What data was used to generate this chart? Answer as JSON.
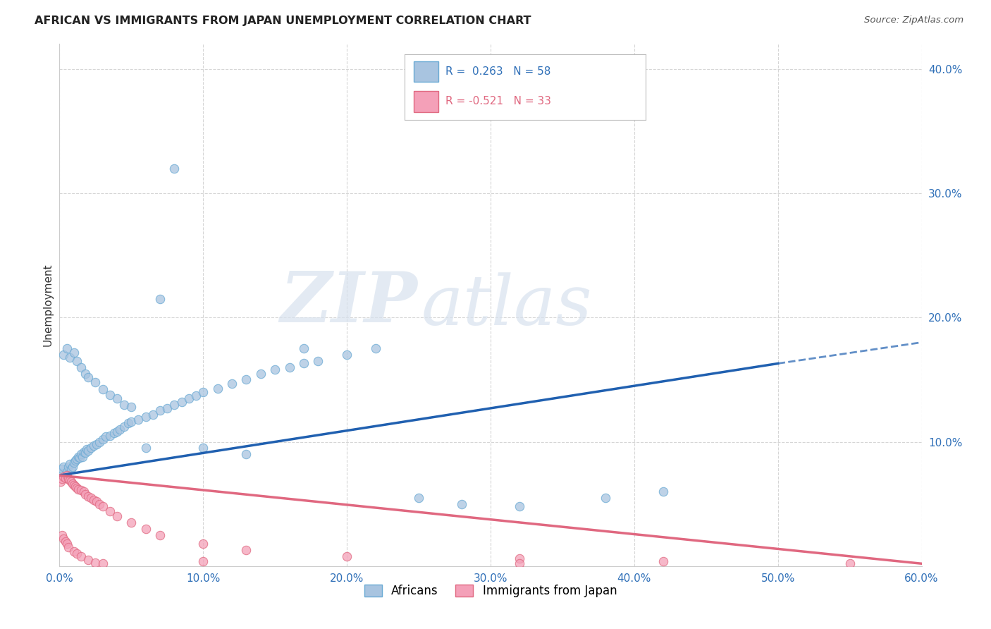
{
  "title": "AFRICAN VS IMMIGRANTS FROM JAPAN UNEMPLOYMENT CORRELATION CHART",
  "source": "Source: ZipAtlas.com",
  "ylabel": "Unemployment",
  "x_min": 0.0,
  "x_max": 0.6,
  "y_min": 0.0,
  "y_max": 0.42,
  "x_ticks": [
    0.0,
    0.1,
    0.2,
    0.3,
    0.4,
    0.5,
    0.6
  ],
  "x_tick_labels": [
    "0.0%",
    "10.0%",
    "20.0%",
    "30.0%",
    "40.0%",
    "50.0%",
    "60.0%"
  ],
  "y_ticks": [
    0.0,
    0.1,
    0.2,
    0.3,
    0.4
  ],
  "y_tick_labels": [
    "",
    "10.0%",
    "20.0%",
    "30.0%",
    "40.0%"
  ],
  "african_color": "#a8c4e0",
  "african_edge_color": "#6aaad4",
  "japan_color": "#f4a0b8",
  "japan_edge_color": "#e06880",
  "trend_african_color": "#2060b0",
  "trend_japan_color": "#e06880",
  "watermark_zip": "ZIP",
  "watermark_atlas": "atlas",
  "africans_label": "Africans",
  "japan_label": "Immigrants from Japan",
  "legend_R1": "R =  0.263",
  "legend_N1": "N = 58",
  "legend_R2": "R = -0.521",
  "legend_N2": "N = 33",
  "african_x": [
    0.001,
    0.002,
    0.003,
    0.004,
    0.005,
    0.006,
    0.007,
    0.008,
    0.009,
    0.01,
    0.011,
    0.012,
    0.013,
    0.014,
    0.015,
    0.016,
    0.017,
    0.018,
    0.019,
    0.02,
    0.022,
    0.024,
    0.026,
    0.028,
    0.03,
    0.032,
    0.035,
    0.038,
    0.04,
    0.042,
    0.045,
    0.048,
    0.05,
    0.055,
    0.06,
    0.065,
    0.07,
    0.075,
    0.08,
    0.085,
    0.09,
    0.095,
    0.1,
    0.11,
    0.12,
    0.13,
    0.14,
    0.15,
    0.16,
    0.17,
    0.18,
    0.2,
    0.22,
    0.25,
    0.28,
    0.32,
    0.38,
    0.42
  ],
  "african_y": [
    0.075,
    0.078,
    0.08,
    0.072,
    0.076,
    0.08,
    0.082,
    0.078,
    0.08,
    0.083,
    0.085,
    0.086,
    0.088,
    0.087,
    0.09,
    0.088,
    0.092,
    0.091,
    0.094,
    0.093,
    0.095,
    0.097,
    0.098,
    0.1,
    0.102,
    0.104,
    0.105,
    0.107,
    0.108,
    0.11,
    0.112,
    0.115,
    0.116,
    0.118,
    0.12,
    0.122,
    0.125,
    0.127,
    0.13,
    0.132,
    0.135,
    0.137,
    0.14,
    0.143,
    0.147,
    0.15,
    0.155,
    0.158,
    0.16,
    0.163,
    0.165,
    0.17,
    0.175,
    0.055,
    0.05,
    0.048,
    0.055,
    0.06
  ],
  "african_extra_x": [
    0.003,
    0.005,
    0.007,
    0.01,
    0.012,
    0.015,
    0.018,
    0.02,
    0.025,
    0.03,
    0.035,
    0.04,
    0.045,
    0.05,
    0.06,
    0.07,
    0.08,
    0.1,
    0.13,
    0.17
  ],
  "african_extra_y": [
    0.17,
    0.175,
    0.168,
    0.172,
    0.165,
    0.16,
    0.155,
    0.152,
    0.148,
    0.142,
    0.138,
    0.135,
    0.13,
    0.128,
    0.095,
    0.215,
    0.32,
    0.095,
    0.09,
    0.175
  ],
  "japan_x": [
    0.001,
    0.002,
    0.003,
    0.004,
    0.005,
    0.006,
    0.007,
    0.008,
    0.009,
    0.01,
    0.011,
    0.012,
    0.013,
    0.015,
    0.017,
    0.018,
    0.02,
    0.022,
    0.024,
    0.026,
    0.028,
    0.03,
    0.035,
    0.04,
    0.05,
    0.06,
    0.07,
    0.1,
    0.13,
    0.2,
    0.32,
    0.42,
    0.55
  ],
  "japan_y": [
    0.068,
    0.07,
    0.072,
    0.071,
    0.073,
    0.07,
    0.069,
    0.068,
    0.066,
    0.065,
    0.064,
    0.063,
    0.062,
    0.061,
    0.06,
    0.058,
    0.056,
    0.055,
    0.053,
    0.052,
    0.05,
    0.048,
    0.044,
    0.04,
    0.035,
    0.03,
    0.025,
    0.018,
    0.013,
    0.008,
    0.006,
    0.004,
    0.002
  ],
  "japan_extra_x": [
    0.002,
    0.003,
    0.004,
    0.005,
    0.006,
    0.01,
    0.012,
    0.015,
    0.02,
    0.025,
    0.03,
    0.1,
    0.32
  ],
  "japan_extra_y": [
    0.025,
    0.022,
    0.02,
    0.018,
    0.015,
    0.012,
    0.01,
    0.008,
    0.005,
    0.003,
    0.002,
    0.004,
    0.002
  ],
  "trend_af_x0": 0.0,
  "trend_af_y0": 0.073,
  "trend_af_x1": 0.5,
  "trend_af_y1": 0.163,
  "trend_af_dash_x1": 0.6,
  "trend_af_dash_y1": 0.18,
  "trend_jp_x0": 0.0,
  "trend_jp_y0": 0.073,
  "trend_jp_x1": 0.6,
  "trend_jp_y1": 0.002
}
